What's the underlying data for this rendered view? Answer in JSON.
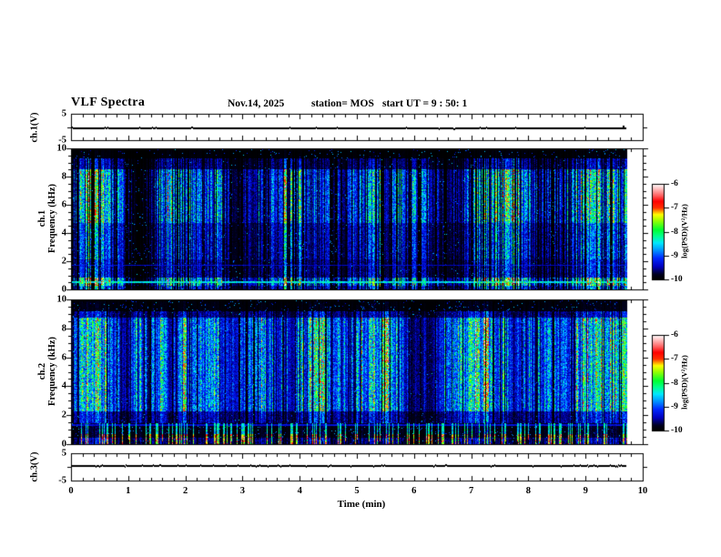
{
  "header": {
    "title": "VLF Spectra",
    "date": "Nov.14, 2025",
    "station": "station= MOS",
    "start_ut": "start UT =  9 : 50: 1"
  },
  "axes": {
    "strip1": {
      "ylabel": "ch.1(V)",
      "yticks": [
        5,
        -5
      ]
    },
    "spec1": {
      "ylabel_line1": "ch.1",
      "ylabel_line2": "Frequency (kHz)",
      "yticks": [
        10,
        8,
        6,
        4,
        2,
        0
      ]
    },
    "spec2": {
      "ylabel_line1": "ch.2",
      "ylabel_line2": "Frequency (kHz)",
      "yticks": [
        10,
        8,
        6,
        4,
        2,
        0
      ]
    },
    "strip2": {
      "ylabel": "ch.3(V)",
      "yticks": [
        5,
        -5
      ]
    },
    "xaxis": {
      "label": "Time (min)",
      "ticks": [
        0,
        1,
        2,
        3,
        4,
        5,
        6,
        7,
        8,
        9,
        10
      ]
    }
  },
  "colorbar": {
    "label": "log(PSD)(V²/Hz)",
    "ticks": [
      -6,
      -7,
      -8,
      -9,
      -10
    ],
    "range": [
      -10,
      -6
    ]
  },
  "colors": {
    "frame": "#000000",
    "background": "#ffffff",
    "spectrogram_background": "#000000"
  },
  "colormap_stops": [
    {
      "v": 0.0,
      "c": "#000000"
    },
    {
      "v": 0.05,
      "c": "#000020"
    },
    {
      "v": 0.13,
      "c": "#0000c0"
    },
    {
      "v": 0.22,
      "c": "#0028ff"
    },
    {
      "v": 0.3,
      "c": "#0090ff"
    },
    {
      "v": 0.38,
      "c": "#00e8ff"
    },
    {
      "v": 0.45,
      "c": "#00ff90"
    },
    {
      "v": 0.52,
      "c": "#00ff30"
    },
    {
      "v": 0.62,
      "c": "#a0ff00"
    },
    {
      "v": 0.68,
      "c": "#ffff00"
    },
    {
      "v": 0.75,
      "c": "#ff3000"
    },
    {
      "v": 0.82,
      "c": "#ff0000"
    },
    {
      "v": 0.88,
      "c": "#ff6060"
    },
    {
      "v": 0.94,
      "c": "#ffb0b0"
    },
    {
      "v": 1.0,
      "c": "#ffffff"
    }
  ],
  "chart_data": [
    {
      "id": "ch1_voltage",
      "type": "line",
      "panel": "strip1",
      "ylabel": "ch.1(V)",
      "ylim": [
        -5,
        5
      ],
      "xlim": [
        0,
        10
      ],
      "baseline_value": -0.4,
      "data_end_min": 9.72,
      "seed": 7,
      "blip_prob": 0.04,
      "end_blip": true,
      "description": "Nearly flat voltage trace at ~0 V with tiny sporadic 1-px blips and a small positive excursion at the right end."
    },
    {
      "id": "ch1_spectrogram",
      "type": "heatmap",
      "panel": "spec1",
      "ylabel": "ch.1 Frequency (kHz)",
      "ylim": [
        0,
        10
      ],
      "xlim": [
        0,
        10
      ],
      "zlabel": "log(PSD)(V²/Hz)",
      "zlim": [
        -10,
        -6
      ],
      "data_end_min": 9.73,
      "seed": 101,
      "streak_density": 0.62,
      "gain": 1.5,
      "speckle_prob": 0.03,
      "low_burst_prob": 0,
      "bands": [
        {
          "f": [
            0,
            0.3
          ],
          "p": 0.55
        },
        {
          "f": [
            0.3,
            0.9
          ],
          "p": 0.95
        },
        {
          "f": [
            0.9,
            2.2
          ],
          "p": 0.38
        },
        {
          "f": [
            2.2,
            4.8
          ],
          "p": 0.5
        },
        {
          "f": [
            4.8,
            8.6
          ],
          "p": 0.78
        },
        {
          "f": [
            8.6,
            9.4
          ],
          "p": 0.3
        },
        {
          "f": [
            9.4,
            10
          ],
          "p": 0.04
        }
      ],
      "hlines": [
        {
          "freq": 0.55,
          "strength": 0.38
        },
        {
          "freq": 1.75,
          "strength": 0.15
        }
      ],
      "description": "Impulsive broadband vertical streaks (sferics) on black background, strongest 5–9 kHz with blue/green cores and occasional red; persistent narrow cyan line near 0.5 kHz; black above ~9.4 kHz."
    },
    {
      "id": "ch2_spectrogram",
      "type": "heatmap",
      "panel": "spec2",
      "ylabel": "ch.2 Frequency (kHz)",
      "ylim": [
        0,
        10
      ],
      "xlim": [
        0,
        10
      ],
      "zlabel": "log(PSD)(V²/Hz)",
      "zlim": [
        -10,
        -6
      ],
      "data_end_min": 9.73,
      "seed": 202,
      "streak_density": 0.86,
      "gain": 1.7,
      "speckle_prob": 0.04,
      "low_burst_prob": 0.2,
      "bands": [
        {
          "f": [
            0,
            0.45
          ],
          "p": 0.3
        },
        {
          "f": [
            0.45,
            1.5
          ],
          "p": 0.12
        },
        {
          "f": [
            1.5,
            2.3
          ],
          "p": 0.4
        },
        {
          "f": [
            2.3,
            8.8
          ],
          "p": 0.85
        },
        {
          "f": [
            8.8,
            9.3
          ],
          "p": 0.35
        },
        {
          "f": [
            9.3,
            10
          ],
          "p": 0.07
        }
      ],
      "hlines": [
        {
          "freq": 1.35,
          "strength": 0.16
        }
      ],
      "description": "Denser, brighter streak field: 2.5–9 kHz largely filled with cyan/green and yellow-orange cores; mostly black below ~1.5 kHz except short bright bursts; faint blue line near 1.3 kHz."
    },
    {
      "id": "ch3_voltage",
      "type": "line",
      "panel": "strip2",
      "ylabel": "ch.3(V)",
      "ylim": [
        -5,
        5
      ],
      "xlim": [
        0,
        10
      ],
      "baseline_value": 0.45,
      "data_end_min": 9.72,
      "seed": 9,
      "blip_prob": 0.1,
      "end_blip": false,
      "description": "Nearly flat voltage trace at ~0 V with small upward noise pips."
    }
  ]
}
